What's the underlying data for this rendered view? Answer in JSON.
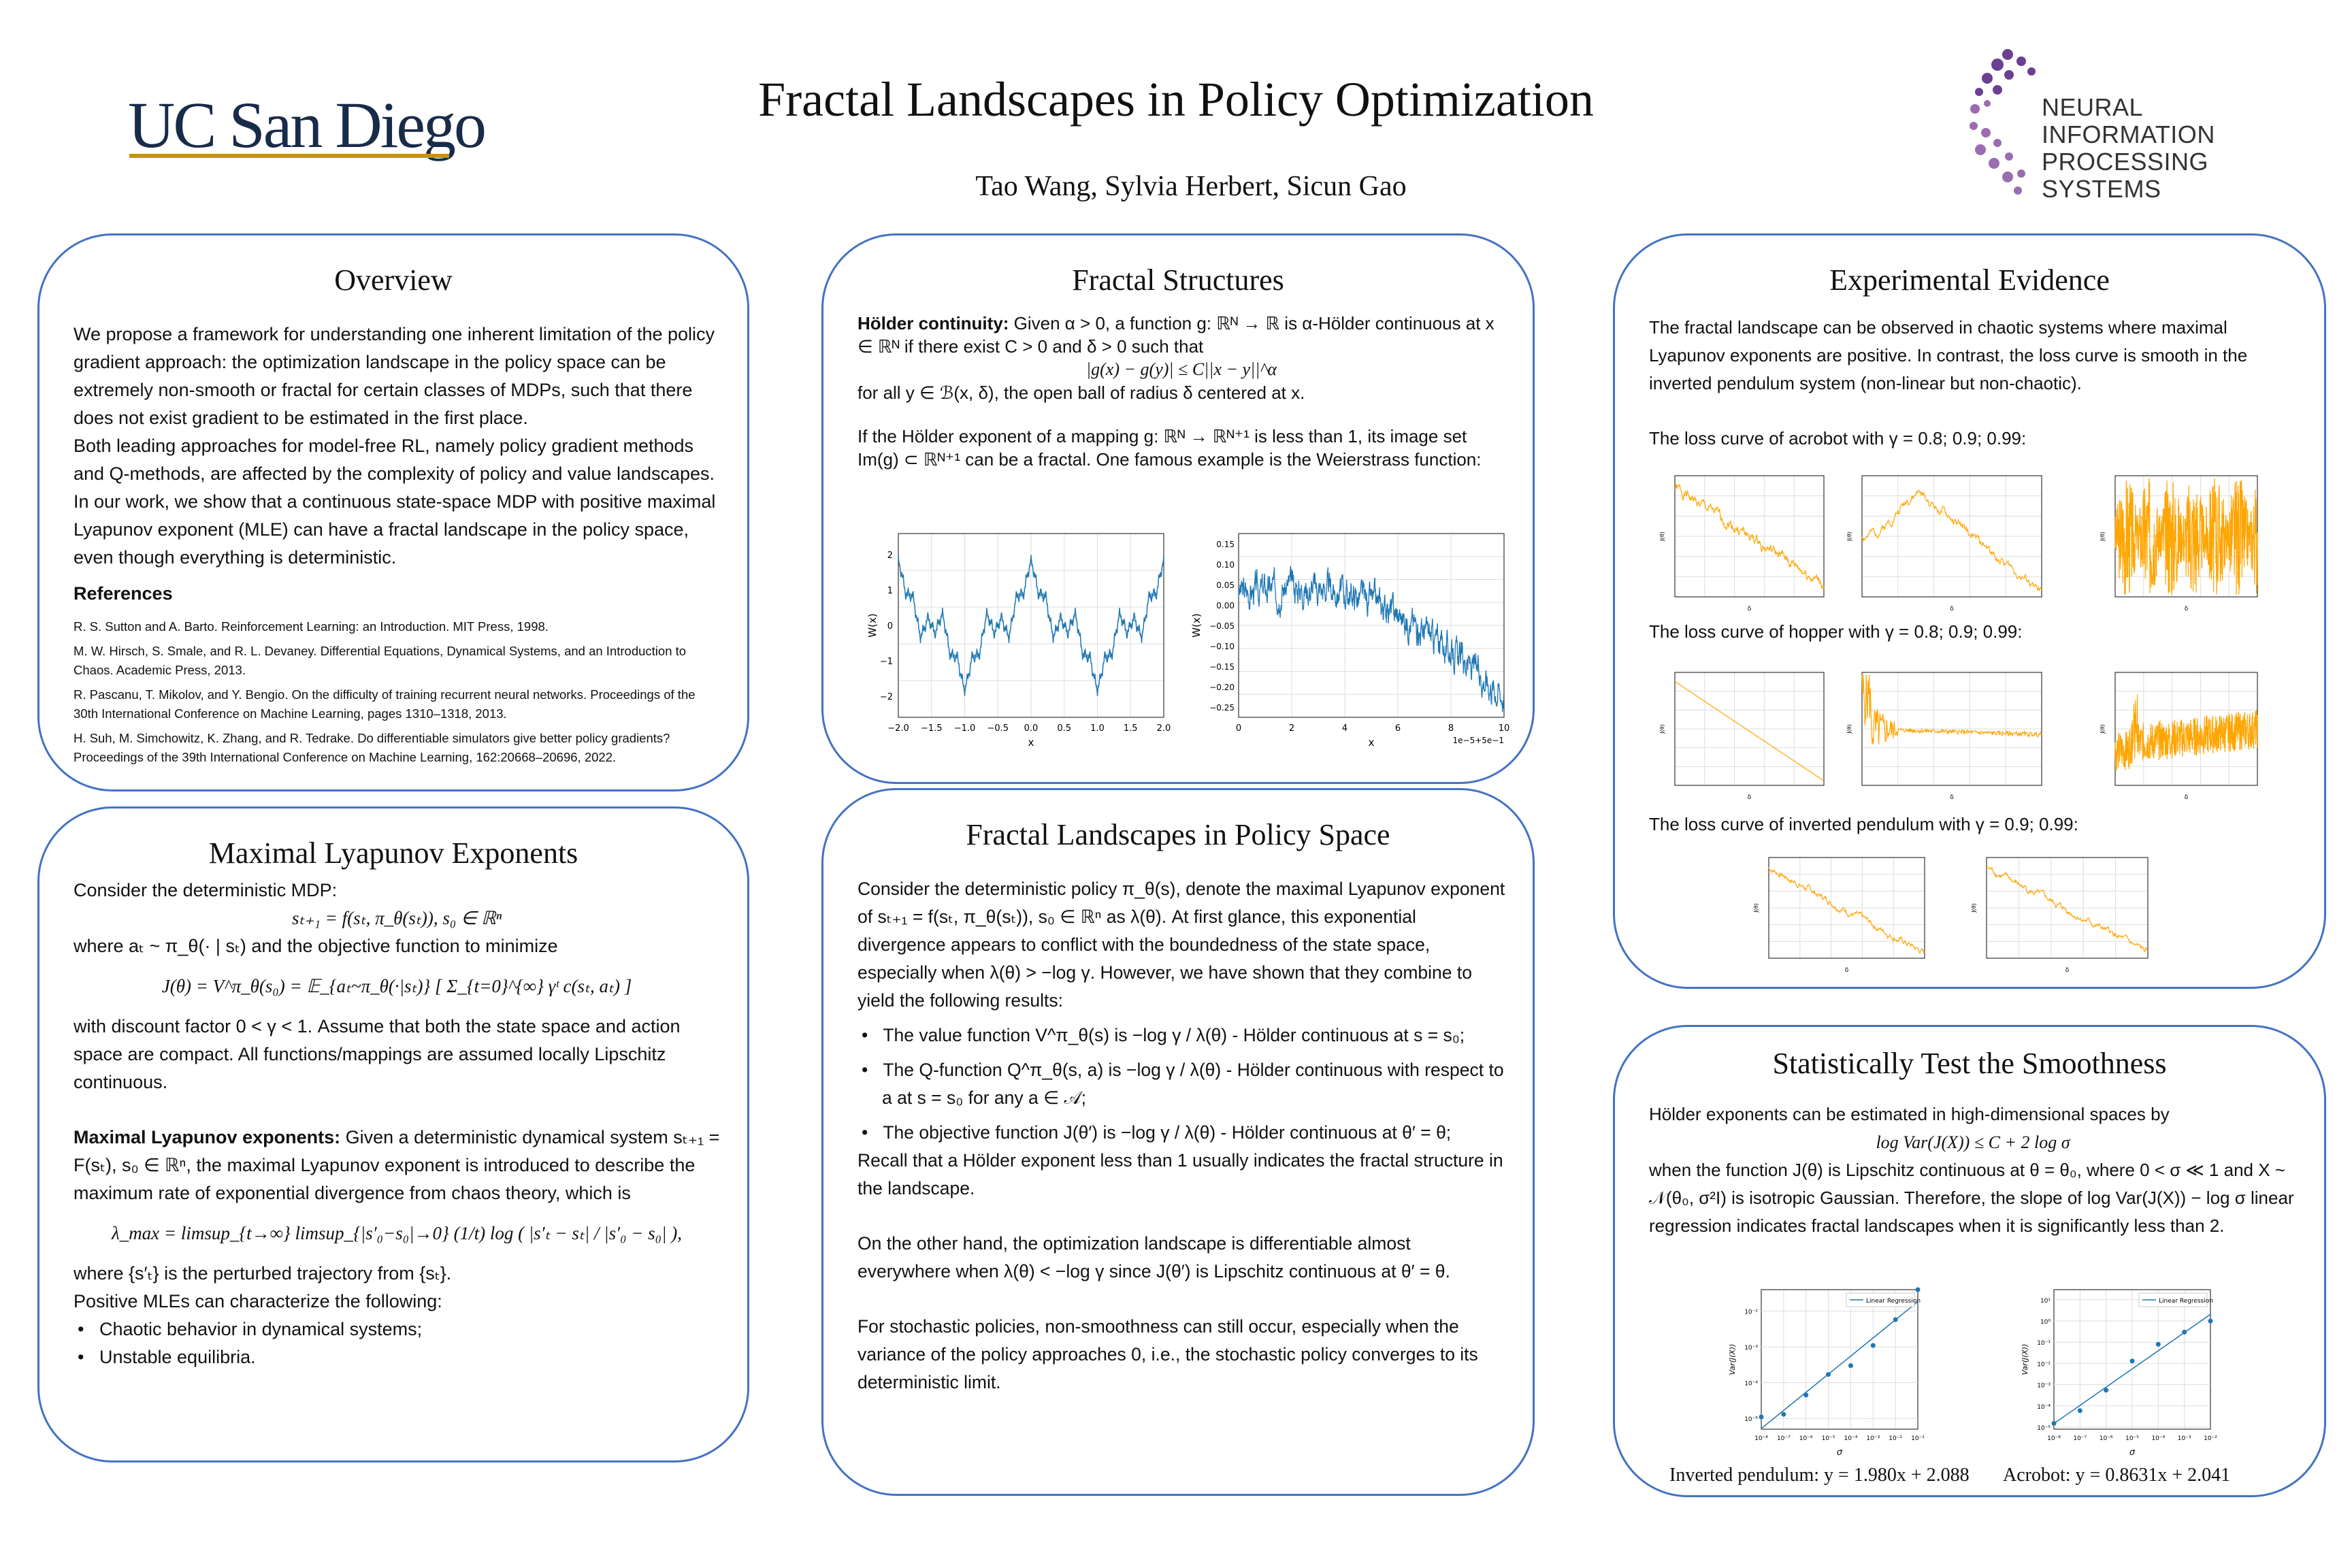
{
  "header": {
    "title": "Fractal Landscapes in Policy Optimization",
    "authors": "Tao Wang, Sylvia Herbert, Sicun Gao",
    "logo_left": "UC San Diego",
    "logo_right": [
      "NEURAL INFORMATION",
      "PROCESSING SYSTEMS"
    ]
  },
  "overview": {
    "title": "Overview",
    "p1": "We propose a framework for understanding one inherent limitation of the policy gradient approach: the optimization landscape in the policy space can be extremely non-smooth or fractal for certain classes of MDPs, such that there does not exist gradient to be estimated in the first place.",
    "p2": "Both leading approaches for model-free RL, namely policy gradient methods and Q-methods, are affected by the complexity of policy and value landscapes. In our work, we show that a continuous state-space MDP with positive maximal Lyapunov exponent (MLE) can have a fractal landscape in the policy space, even though everything is deterministic.",
    "refs_title": "References",
    "refs": [
      "R. S. Sutton and A. Barto. Reinforcement Learning: an Introduction. MIT Press, 1998.",
      "M. W. Hirsch, S. Smale, and R. L. Devaney. Differential Equations, Dynamical Systems, and an Introduction to Chaos. Academic Press, 2013.",
      "R. Pascanu, T. Mikolov, and Y. Bengio. On the difficulty of training recurrent neural networks. Proceedings of the 30th International Conference on Machine Learning, pages 1310–1318, 2013.",
      "H. Suh, M. Simchowitz, K. Zhang, and R. Tedrake. Do differentiable simulators give better policy gradients? Proceedings of the 39th International Conference on Machine Learning, 162:20668–20696, 2022."
    ]
  },
  "lyapunov": {
    "title": "Maximal Lyapunov Exponents",
    "p1": "Consider the deterministic MDP:",
    "eq1": "sₜ₊₁ = f(sₜ, π_θ(sₜ)),        s₀ ∈ ℝⁿ",
    "p2": "where aₜ ~ π_θ(· | sₜ) and the objective function to minimize",
    "eq2": "J(θ) = V^π_θ(s₀) = 𝔼_{aₜ~π_θ(·|sₜ)} [ Σ_{t=0}^{∞} γᵗ c(sₜ, aₜ) ]",
    "p3": "with discount factor 0 < γ < 1. Assume that both the state space and action space are compact. All functions/mappings are assumed locally Lipschitz continuous.",
    "p4_bold": "Maximal Lyapunov exponents:",
    "p4": " Given a deterministic dynamical system sₜ₊₁ = F(sₜ), s₀ ∈ ℝⁿ, the maximal Lyapunov exponent is introduced to describe the maximum rate of exponential divergence from chaos theory, which is",
    "eq3": "λ_max = limsup_{t→∞} limsup_{|s′₀−s₀|→0} (1/t) log ( |s′ₜ − sₜ| / |s′₀ − s₀| ),",
    "p5": "where {s′ₜ} is the perturbed trajectory from {sₜ}.",
    "p6": "Positive MLEs can characterize the following:",
    "bullets": [
      "Chaotic behavior in dynamical systems;",
      "Unstable equilibria."
    ]
  },
  "structures": {
    "title": "Fractal Structures",
    "p1_bold": "Hölder continuity:",
    "p1": " Given α > 0, a function g: ℝᴺ → ℝ is α-Hölder continuous at x ∈ ℝᴺ if there exist C > 0 and δ > 0 such that",
    "eq1": "|g(x) − g(y)| ≤ C||x − y||^α",
    "p2": "for all y ∈ ℬ(x, δ), the open ball of radius δ centered at x.",
    "p3": "If the Hölder exponent of a mapping g: ℝᴺ → ℝᴺ⁺¹ is less than 1, its image set Im(g) ⊂ ℝᴺ⁺¹ can be a fractal. One famous example is the Weierstrass function:",
    "plot1": {
      "ylabel": "W(x)",
      "xlabel": "x",
      "xticks": [
        "−2.0",
        "−1.5",
        "−1.0",
        "−0.5",
        "0.0",
        "0.5",
        "1.0",
        "1.5",
        "2.0"
      ],
      "yticks": [
        "2",
        "1",
        "0",
        "−1",
        "−2"
      ]
    },
    "plot2": {
      "ylabel": "W(x)",
      "xlabel": "x",
      "offset": "1e−5+5e−1",
      "xticks": [
        "0",
        "2",
        "4",
        "6",
        "8",
        "10"
      ],
      "yticks": [
        "0.15",
        "0.10",
        "0.05",
        "0.00",
        "−0.05",
        "−0.10",
        "−0.15",
        "−0.20",
        "−0.25"
      ]
    },
    "line_color": "#1f77b4"
  },
  "landscapes": {
    "title": "Fractal Landscapes in Policy Space",
    "p1": "Consider the deterministic policy π_θ(s), denote the maximal Lyapunov exponent of sₜ₊₁ = f(sₜ, π_θ(sₜ)),   s₀ ∈ ℝⁿ as λ(θ). At first glance, this exponential divergence appears to conflict with the boundedness of the state space, especially when λ(θ) > −log γ. However, we have shown that they combine to yield the following results:",
    "bullets": [
      "The value function V^π_θ(s) is −log γ / λ(θ) - Hölder continuous at s = s₀;",
      "The Q-function Q^π_θ(s, a) is −log γ / λ(θ) - Hölder continuous with respect to a at s = s₀ for any a ∈ 𝒜;",
      "The objective function J(θ′) is −log γ / λ(θ) - Hölder continuous at θ′ = θ;"
    ],
    "p2": "Recall that a Hölder exponent less than 1 usually indicates the fractal structure in the landscape.",
    "p3": "On the other hand, the optimization landscape is differentiable almost everywhere when λ(θ) < −log γ since J(θ′) is Lipschitz continuous at θ′ = θ.",
    "p4": "For stochastic policies, non-smoothness can still occur, especially when the variance of the policy approaches 0, i.e., the stochastic policy converges to its deterministic limit."
  },
  "evidence": {
    "title": "Experimental Evidence",
    "p1": "The fractal landscape can be observed in chaotic systems where maximal Lyapunov exponents are positive. In contrast, the loss curve is smooth in the inverted pendulum system (non-linear but non-chaotic).",
    "acrobot_label": "The loss curve of acrobot with γ = 0.8; 0.9; 0.99:",
    "hopper_label": "The loss curve of hopper with γ = 0.8; 0.9; 0.99:",
    "pendulum_label": "The loss curve of inverted pendulum with γ = 0.9; 0.99:",
    "axis_x": "δ",
    "axis_y": "J(θ)",
    "line_color": "#FFA500"
  },
  "stat": {
    "title": "Statistically Test the Smoothness",
    "p1": "Hölder exponents can be estimated in high-dimensional spaces by",
    "eq1": "log Var(J(X)) ≤ C + 2 log σ",
    "p2": "when the function J(θ) is Lipschitz continuous at θ = θ₀, where 0 < σ ≪ 1 and X ~ 𝒩(θ₀, σ²I) is isotropic Gaussian. Therefore, the slope of log Var(J(X)) − log σ linear regression indicates fractal landscapes when it is significantly less than 2.",
    "legend": "Linear Regression",
    "xlabel": "σ",
    "ylabel": "Var(J(X))",
    "caption_left": "Inverted pendulum: y = 1.980x + 2.088",
    "caption_right": "Acrobot: y = 0.8631x + 2.041"
  },
  "chart_data": [
    {
      "type": "scatter",
      "xscale": "log",
      "yscale": "log",
      "xlabel": "σ",
      "ylabel": "Var(J(X))",
      "legend": "Linear Regression",
      "legend_position": "top-right",
      "grid": true,
      "x": [
        1e-08,
        1e-07,
        1e-06,
        1e-05,
        0.0001,
        0.001,
        0.01,
        0.1
      ],
      "y": [
        1.1e-05,
        1.3e-05,
        4.5e-05,
        0.00017,
        0.0003,
        0.0011,
        0.0058,
        0.04
      ],
      "xticks": [
        "10⁻⁸",
        "10⁻⁷",
        "10⁻⁶",
        "10⁻⁵",
        "10⁻⁴",
        "10⁻³",
        "10⁻²",
        "10⁻¹"
      ],
      "yticks": [
        "10⁻²",
        "10⁻³",
        "10⁻⁴",
        "10⁻⁵"
      ],
      "xlim": [
        1e-08,
        0.1
      ],
      "ylim": [
        5e-06,
        0.04
      ]
    },
    {
      "type": "scatter",
      "xscale": "log",
      "yscale": "log",
      "xlabel": "σ",
      "ylabel": "Var(J(X))",
      "legend": "Linear Regression",
      "legend_position": "top-right",
      "grid": true,
      "x": [
        1e-08,
        1e-07,
        1e-06,
        1e-05,
        0.0001,
        0.001,
        0.01
      ],
      "y": [
        1.5e-05,
        6e-05,
        0.00055,
        0.013,
        0.08,
        0.3,
        1.0
      ],
      "xticks": [
        "10⁻⁸",
        "10⁻⁷",
        "10⁻⁶",
        "10⁻⁵",
        "10⁻⁴",
        "10⁻³",
        "10⁻²"
      ],
      "yticks": [
        "10¹",
        "10⁰",
        "10⁻¹",
        "10⁻²",
        "10⁻³",
        "10⁻⁴",
        "10⁻⁵"
      ],
      "xlim": [
        1e-08,
        0.01
      ],
      "ylim": [
        8e-06,
        30
      ]
    }
  ]
}
